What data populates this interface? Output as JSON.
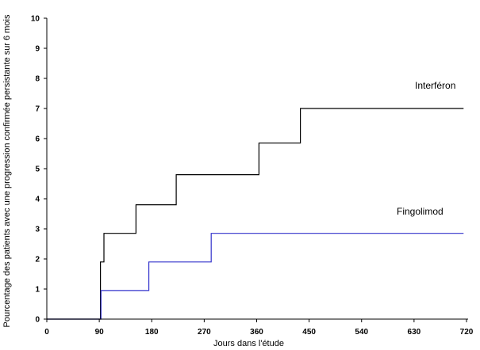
{
  "chart_data": {
    "type": "line",
    "step": true,
    "title": "",
    "xlabel": "Jours dans l'étude",
    "ylabel": "Pourcentage des patients avec une progression confirmée persistante sur 6 mois",
    "xlim": [
      0,
      720
    ],
    "ylim": [
      0,
      10
    ],
    "xticks": [
      0,
      90,
      180,
      270,
      360,
      450,
      540,
      630,
      720
    ],
    "yticks": [
      0,
      1,
      2,
      3,
      4,
      5,
      6,
      7,
      8,
      9,
      10
    ],
    "grid": false,
    "legend": "inline labels",
    "series": [
      {
        "name": "Interféron",
        "color": "#000000",
        "x": [
          0,
          92,
          92,
          94,
          94,
          98,
          98,
          153,
          153,
          222,
          222,
          364,
          364,
          435,
          435,
          715
        ],
        "y": [
          0,
          0,
          1.9,
          1.9,
          1.9,
          1.9,
          2.85,
          2.85,
          3.8,
          3.8,
          4.8,
          4.8,
          5.85,
          5.85,
          7.0,
          7.0
        ]
      },
      {
        "name": "Fingolimod",
        "color": "#3333cc",
        "x": [
          0,
          93,
          93,
          175,
          175,
          282,
          282,
          715
        ],
        "y": [
          0,
          0,
          0.95,
          0.95,
          1.9,
          1.9,
          2.85,
          2.85
        ]
      }
    ]
  }
}
